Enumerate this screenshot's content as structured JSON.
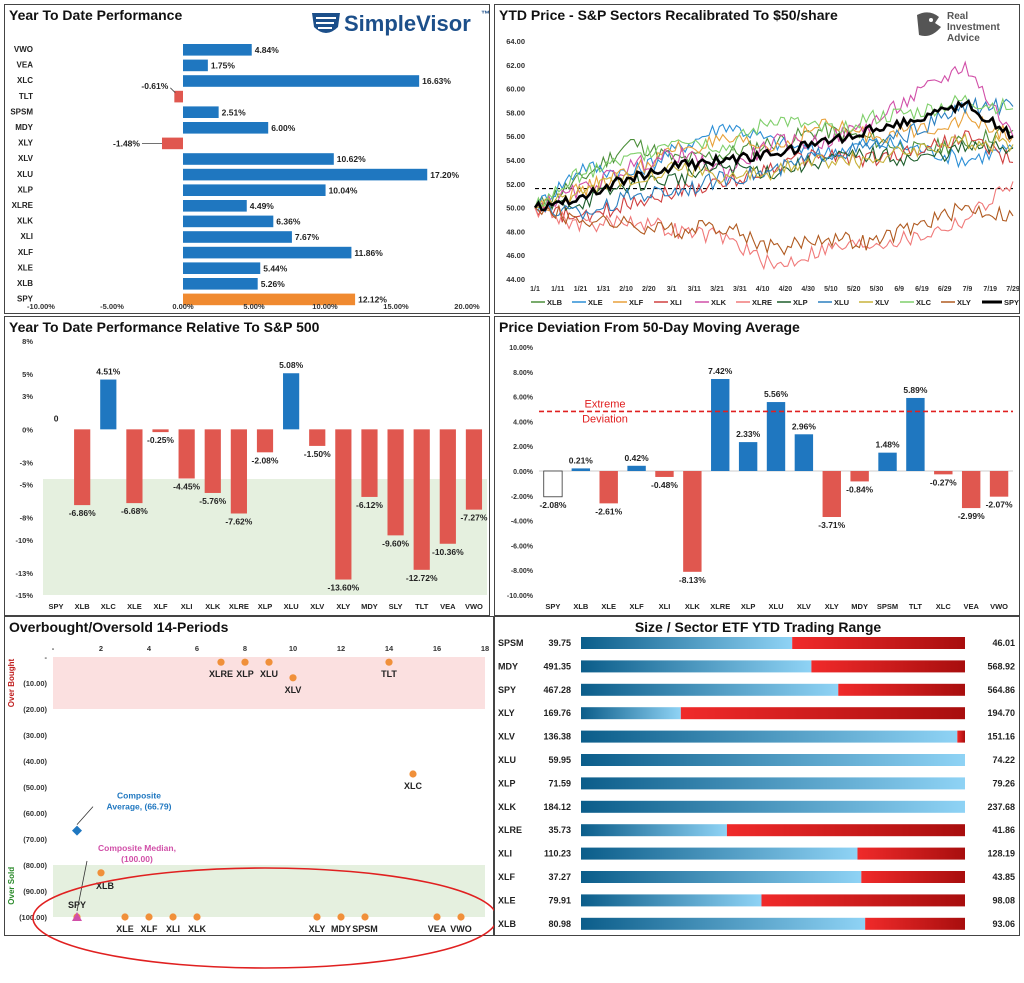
{
  "brand": {
    "simplevisor": "SimpleVisor",
    "tm": "™",
    "ria_line1": "Real",
    "ria_line2": "Investment",
    "ria_line3": "Advice"
  },
  "chart_data": [
    {
      "id": "ytd",
      "type": "bar",
      "orientation": "horizontal",
      "title": "Year To Date Performance",
      "categories": [
        "VWO",
        "VEA",
        "XLC",
        "TLT",
        "SPSM",
        "MDY",
        "XLY",
        "XLV",
        "XLU",
        "XLP",
        "XLRE",
        "XLK",
        "XLI",
        "XLF",
        "XLE",
        "XLB",
        "SPY"
      ],
      "values": [
        4.84,
        1.75,
        16.63,
        -0.61,
        2.51,
        6.0,
        -1.48,
        10.62,
        17.2,
        10.04,
        4.49,
        6.36,
        7.67,
        11.86,
        5.44,
        5.26,
        12.12
      ],
      "labels": [
        "4.84%",
        "1.75%",
        "16.63%",
        "-0.61%",
        "2.51%",
        "6.00%",
        "-1.48%",
        "10.62%",
        "17.20%",
        "10.04%",
        "4.49%",
        "6.36%",
        "7.67%",
        "11.86%",
        "5.44%",
        "5.26%",
        "12.12%"
      ],
      "highlight": "SPY",
      "xlim": [
        -10,
        20
      ],
      "xticks": [
        -10,
        -5,
        0,
        5,
        10,
        15,
        20
      ],
      "xtick_labels": [
        "-10.00%",
        "-5.00%",
        "0.00%",
        "5.00%",
        "10.00%",
        "15.00%",
        "20.00%"
      ],
      "colors": {
        "positive": "#1f77c0",
        "negative": "#e0574f",
        "highlight": "#f08a30"
      }
    },
    {
      "id": "price",
      "type": "line",
      "title": "YTD Price - S&P Sectors Recalibrated To $50/share",
      "ylim": [
        44,
        64
      ],
      "yticks": [
        "44.00",
        "46.00",
        "48.00",
        "50.00",
        "52.00",
        "54.00",
        "56.00",
        "58.00",
        "60.00",
        "62.00",
        "64.00"
      ],
      "x_labels": [
        "1/1",
        "1/11",
        "1/21",
        "1/31",
        "2/10",
        "2/20",
        "3/1",
        "3/11",
        "3/21",
        "3/31",
        "4/10",
        "4/20",
        "4/30",
        "5/10",
        "5/20",
        "5/30",
        "6/9",
        "6/19",
        "6/29",
        "7/9",
        "7/19",
        "7/29"
      ],
      "reference_line": 51.6,
      "series": [
        {
          "name": "XLB",
          "color": "#4c8f3a",
          "endpoints": [
            50,
            52.5,
            55.5,
            54.0,
            54.5,
            55.5,
            56.5,
            55.8,
            54.8,
            55.5,
            56.5
          ]
        },
        {
          "name": "XLE",
          "color": "#2c8fd6",
          "endpoints": [
            50,
            53.5,
            52.8,
            55.0,
            57.0,
            55.5,
            54.5,
            55.5,
            55.0,
            54.0,
            55.0
          ]
        },
        {
          "name": "XLF",
          "color": "#e8a13a",
          "endpoints": [
            50,
            51.5,
            53.0,
            55.0,
            55.5,
            55.0,
            57.0,
            56.0,
            56.5,
            57.5,
            56.0
          ]
        },
        {
          "name": "XLI",
          "color": "#d04040",
          "endpoints": [
            50,
            49.0,
            50.5,
            51.5,
            52.0,
            53.5,
            54.5,
            54.0,
            54.8,
            56.0,
            53.8
          ]
        },
        {
          "name": "XLK",
          "color": "#d14fa8",
          "endpoints": [
            50,
            51.5,
            53.5,
            54.5,
            53.0,
            55.5,
            55.5,
            57.0,
            59.5,
            62.0,
            56.0
          ]
        },
        {
          "name": "XLRE",
          "color": "#f07a7a",
          "endpoints": [
            50,
            48.5,
            49.0,
            48.0,
            47.5,
            45.0,
            46.5,
            47.0,
            47.5,
            49.0,
            52.2
          ]
        },
        {
          "name": "XLP",
          "color": "#1d5e2b",
          "endpoints": [
            50,
            50.5,
            52.0,
            52.5,
            53.5,
            53.0,
            54.0,
            54.5,
            54.0,
            55.0,
            55.0
          ]
        },
        {
          "name": "XLU",
          "color": "#2a7fbf",
          "endpoints": [
            50,
            49.5,
            51.0,
            51.5,
            52.5,
            53.0,
            54.5,
            55.0,
            56.5,
            58.5,
            58.5
          ]
        },
        {
          "name": "XLV",
          "color": "#c8b23a",
          "endpoints": [
            50,
            51.5,
            52.5,
            53.5,
            52.5,
            53.0,
            54.0,
            54.0,
            55.0,
            55.5,
            55.3
          ]
        },
        {
          "name": "XLC",
          "color": "#7fcf6a",
          "endpoints": [
            50,
            53.0,
            54.0,
            56.0,
            55.0,
            57.5,
            56.5,
            57.5,
            58.0,
            59.0,
            58.3
          ]
        },
        {
          "name": "XLY",
          "color": "#b05a20",
          "endpoints": [
            50,
            49.0,
            48.5,
            48.0,
            48.5,
            46.5,
            47.5,
            47.0,
            48.5,
            50.0,
            49.3
          ]
        },
        {
          "name": "SPY",
          "color": "#000000",
          "bold": true,
          "endpoints": [
            50,
            51.0,
            52.5,
            53.5,
            54.0,
            54.5,
            55.5,
            56.5,
            57.5,
            58.8,
            56.0
          ]
        }
      ]
    },
    {
      "id": "rel",
      "type": "bar",
      "title": "Year To Date Performance Relative To S&P 500",
      "categories": [
        "SPY",
        "XLB",
        "XLC",
        "XLE",
        "XLF",
        "XLI",
        "XLK",
        "XLRE",
        "XLP",
        "XLU",
        "XLV",
        "XLY",
        "MDY",
        "SLY",
        "TLT",
        "VEA",
        "VWO"
      ],
      "values": [
        0,
        -6.86,
        4.51,
        -6.68,
        -0.25,
        -4.45,
        -5.76,
        -7.62,
        -2.08,
        5.08,
        -1.5,
        -13.6,
        -6.12,
        -9.6,
        -12.72,
        -10.36,
        -7.27
      ],
      "labels": [
        "0",
        "-6.86%",
        "4.51%",
        "-6.68%",
        "-0.25%",
        "-4.45%",
        "-5.76%",
        "-7.62%",
        "-2.08%",
        "5.08%",
        "-1.50%",
        "-13.60%",
        "-6.12%",
        "-9.60%",
        "-12.72%",
        "-10.36%",
        "-7.27%"
      ],
      "ylim": [
        -15,
        8
      ],
      "yticks": [
        8,
        5,
        3,
        0,
        -3,
        -5,
        -8,
        -10,
        -13,
        -15
      ],
      "ytick_labels": [
        "8%",
        "5%",
        "3%",
        "0%",
        "-3%",
        "-5%",
        "-8%",
        "-10%",
        "-13%",
        "-15%"
      ],
      "shaded_below": -4.5,
      "colors": {
        "positive": "#1f77c0",
        "negative": "#e0574f"
      }
    },
    {
      "id": "dev",
      "type": "bar",
      "title": "Price Deviation From 50-Day Moving Average",
      "categories": [
        "SPY",
        "XLB",
        "XLE",
        "XLF",
        "XLI",
        "XLK",
        "XLRE",
        "XLP",
        "XLU",
        "XLV",
        "XLY",
        "MDY",
        "SPSM",
        "TLT",
        "XLC",
        "VEA",
        "VWO"
      ],
      "values": [
        -2.08,
        0.21,
        -2.61,
        0.42,
        -0.48,
        -8.13,
        7.42,
        2.33,
        5.56,
        2.96,
        -3.71,
        -0.84,
        1.48,
        5.89,
        -0.27,
        -2.99,
        -2.07
      ],
      "labels": [
        "-2.08%",
        "0.21%",
        "-2.61%",
        "0.42%",
        "-0.48%",
        "-8.13%",
        "7.42%",
        "2.33%",
        "5.56%",
        "2.96%",
        "-3.71%",
        "-0.84%",
        "1.48%",
        "5.89%",
        "-0.27%",
        "-2.99%",
        "-2.07%"
      ],
      "ylim": [
        -10,
        10
      ],
      "yticks": [
        10,
        8,
        6,
        4,
        2,
        0,
        -2,
        -4,
        -6,
        -8,
        -10
      ],
      "ytick_labels": [
        "10.00%",
        "8.00%",
        "6.00%",
        "4.00%",
        "2.00%",
        "0.00%",
        "-2.00%",
        "-4.00%",
        "-6.00%",
        "-8.00%",
        "-10.00%"
      ],
      "extreme_line": 4.8,
      "extreme_label_1": "Extreme",
      "extreme_label_2": "Deviation",
      "colors": {
        "positive": "#1f77c0",
        "negative": "#e0574f",
        "spy": "#ffffff"
      }
    },
    {
      "id": "obos",
      "type": "scatter",
      "title": "Overbought/Oversold 14-Periods",
      "xlim": [
        0,
        18
      ],
      "xticks": [
        0,
        2,
        4,
        6,
        8,
        10,
        12,
        14,
        16,
        18
      ],
      "xtick_labels": [
        "-",
        "2",
        "4",
        "6",
        "8",
        "10",
        "12",
        "14",
        "16",
        "18"
      ],
      "ylim": [
        -100,
        0
      ],
      "yticks": [
        0,
        -10,
        -20,
        -30,
        -40,
        -50,
        -60,
        -70,
        -80,
        -90,
        -100
      ],
      "ytick_labels": [
        "-",
        "(10.00)",
        "(20.00)",
        "(30.00)",
        "(40.00)",
        "(50.00)",
        "(60.00)",
        "(70.00)",
        "(80.00)",
        "(90.00)",
        "(100.00)"
      ],
      "overbought_label": "Over Bought",
      "oversold_label": "Over Sold",
      "points": [
        {
          "name": "XLRE",
          "x": 7,
          "y": -2
        },
        {
          "name": "XLP",
          "x": 8,
          "y": -2
        },
        {
          "name": "XLU",
          "x": 9,
          "y": -2
        },
        {
          "name": "XLV",
          "x": 10,
          "y": -8
        },
        {
          "name": "TLT",
          "x": 14,
          "y": -2
        },
        {
          "name": "XLC",
          "x": 15,
          "y": -45
        },
        {
          "name": "XLB",
          "x": 2,
          "y": -83
        },
        {
          "name": "SPY",
          "x": 1,
          "y": -100
        },
        {
          "name": "XLE",
          "x": 3,
          "y": -100
        },
        {
          "name": "XLF",
          "x": 4,
          "y": -100
        },
        {
          "name": "XLI",
          "x": 5,
          "y": -100
        },
        {
          "name": "XLK",
          "x": 6,
          "y": -100
        },
        {
          "name": "XLY",
          "x": 11,
          "y": -100
        },
        {
          "name": "MDY",
          "x": 12,
          "y": -100
        },
        {
          "name": "SPSM",
          "x": 13,
          "y": -100
        },
        {
          "name": "VEA",
          "x": 16,
          "y": -100
        },
        {
          "name": "VWO",
          "x": 17,
          "y": -100
        }
      ],
      "composite_average": {
        "label_1": "Composite",
        "label_2": "Average,  (66.79)",
        "x": 1,
        "y": -66.79
      },
      "composite_median": {
        "label_1": "Composite Median,",
        "label_2": "(100.00)",
        "x": 1,
        "y": -100
      }
    },
    {
      "id": "range",
      "type": "range",
      "title": "Size / Sector ETF YTD Trading Range",
      "rows": [
        {
          "name": "SPSM",
          "low": "39.75",
          "high": "46.01",
          "position": 0.55
        },
        {
          "name": "MDY",
          "low": "491.35",
          "high": "568.92",
          "position": 0.6
        },
        {
          "name": "SPY",
          "low": "467.28",
          "high": "564.86",
          "position": 0.67
        },
        {
          "name": "XLY",
          "low": "169.76",
          "high": "194.70",
          "position": 0.26
        },
        {
          "name": "XLV",
          "low": "136.38",
          "high": "151.16",
          "position": 0.98
        },
        {
          "name": "XLU",
          "low": "59.95",
          "high": "74.22",
          "position": 1.0
        },
        {
          "name": "XLP",
          "low": "71.59",
          "high": "79.26",
          "position": 1.0
        },
        {
          "name": "XLK",
          "low": "184.12",
          "high": "237.68",
          "position": 1.0
        },
        {
          "name": "XLRE",
          "low": "35.73",
          "high": "41.86",
          "position": 0.38
        },
        {
          "name": "XLI",
          "low": "110.23",
          "high": "128.19",
          "position": 0.72
        },
        {
          "name": "XLF",
          "low": "37.27",
          "high": "43.85",
          "position": 0.73
        },
        {
          "name": "XLE",
          "low": "79.91",
          "high": "98.08",
          "position": 0.47
        },
        {
          "name": "XLB",
          "low": "80.98",
          "high": "93.06",
          "position": 0.74
        }
      ]
    }
  ]
}
